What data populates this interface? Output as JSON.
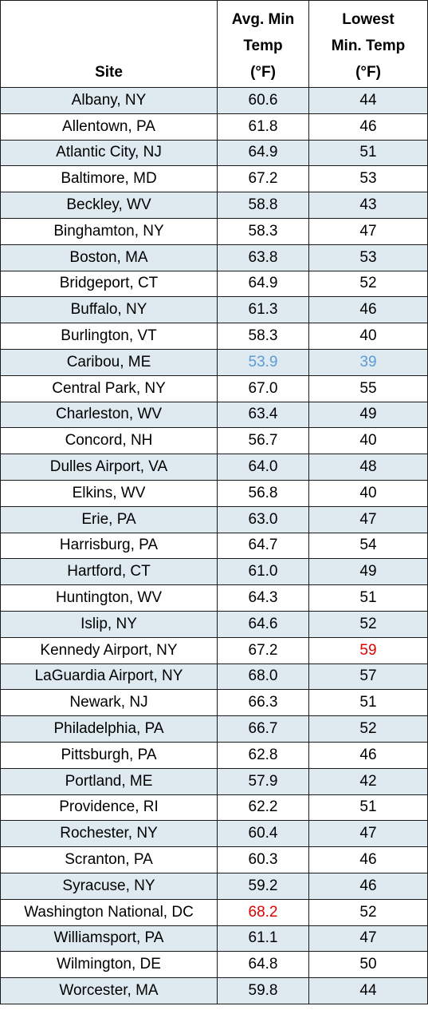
{
  "table": {
    "header": [
      "Site",
      "Avg. Min Temp (°F)",
      "Lowest Min. Temp (°F)"
    ],
    "rows": [
      [
        "Albany, NY",
        "60.6",
        "44"
      ],
      [
        "Allentown, PA",
        "61.8",
        "46"
      ],
      [
        "Atlantic City, NJ",
        "64.9",
        "51"
      ],
      [
        "Baltimore, MD",
        "67.2",
        "53"
      ],
      [
        "Beckley, WV",
        "58.8",
        "43"
      ],
      [
        "Binghamton, NY",
        "58.3",
        "47"
      ],
      [
        "Boston, MA",
        "63.8",
        "53"
      ],
      [
        "Bridgeport, CT",
        "64.9",
        "52"
      ],
      [
        "Buffalo, NY",
        "61.3",
        "46"
      ],
      [
        "Burlington, VT",
        "58.3",
        "40"
      ],
      [
        "Caribou, ME",
        "53.9",
        "39"
      ],
      [
        "Central Park, NY",
        "67.0",
        "55"
      ],
      [
        "Charleston, WV",
        "63.4",
        "49"
      ],
      [
        "Concord, NH",
        "56.7",
        "40"
      ],
      [
        "Dulles Airport, VA",
        "64.0",
        "48"
      ],
      [
        "Elkins, WV",
        "56.8",
        "40"
      ],
      [
        "Erie, PA",
        "63.0",
        "47"
      ],
      [
        "Harrisburg, PA",
        "64.7",
        "54"
      ],
      [
        "Hartford, CT",
        "61.0",
        "49"
      ],
      [
        "Huntington, WV",
        "64.3",
        "51"
      ],
      [
        "Islip, NY",
        "64.6",
        "52"
      ],
      [
        "Kennedy Airport, NY",
        "67.2",
        "59"
      ],
      [
        "LaGuardia Airport, NY",
        "68.0",
        "57"
      ],
      [
        "Newark, NJ",
        "66.3",
        "51"
      ],
      [
        "Philadelphia, PA",
        "66.7",
        "52"
      ],
      [
        "Pittsburgh, PA",
        "62.8",
        "46"
      ],
      [
        "Portland, ME",
        "57.9",
        "42"
      ],
      [
        "Providence, RI",
        "62.2",
        "51"
      ],
      [
        "Rochester, NY",
        "60.4",
        "47"
      ],
      [
        "Scranton, PA",
        "60.3",
        "46"
      ],
      [
        "Syracuse, NY",
        "59.2",
        "46"
      ],
      [
        "Washington National, DC",
        "68.2",
        "52"
      ],
      [
        "Williamsport, PA",
        "61.1",
        "47"
      ],
      [
        "Wilmington, DE",
        "64.8",
        "50"
      ],
      [
        "Worcester, MA",
        "59.8",
        "44"
      ]
    ]
  }
}
